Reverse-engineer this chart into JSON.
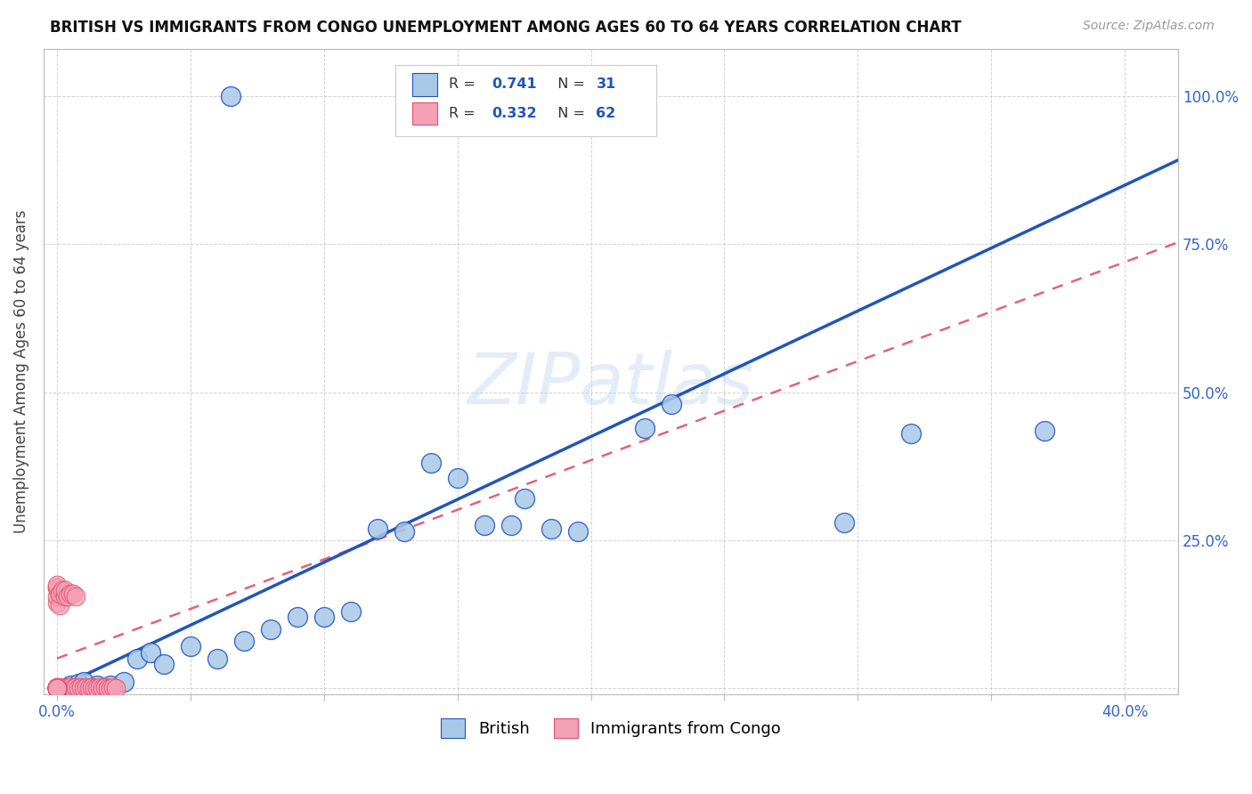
{
  "title": "BRITISH VS IMMIGRANTS FROM CONGO UNEMPLOYMENT AMONG AGES 60 TO 64 YEARS CORRELATION CHART",
  "source": "Source: ZipAtlas.com",
  "ylabel": "Unemployment Among Ages 60 to 64 years",
  "x_ticks": [
    0.0,
    0.05,
    0.1,
    0.15,
    0.2,
    0.25,
    0.3,
    0.35,
    0.4
  ],
  "x_tick_labels": [
    "0.0%",
    "",
    "",
    "",
    "",
    "",
    "",
    "",
    "40.0%"
  ],
  "y_ticks": [
    0.0,
    0.25,
    0.5,
    0.75,
    1.0
  ],
  "y_tick_labels": [
    "",
    "25.0%",
    "50.0%",
    "75.0%",
    "100.0%"
  ],
  "xlim": [
    -0.005,
    0.42
  ],
  "ylim": [
    -0.01,
    1.08
  ],
  "legend_R_british": "0.741",
  "legend_N_british": "31",
  "legend_R_congo": "0.332",
  "legend_N_congo": "62",
  "watermark": "ZIPatlas",
  "british_color": "#a8c8e8",
  "congo_color": "#f4a0b5",
  "british_line_color": "#2255bb",
  "congo_line_color": "#e05070",
  "british_scatter_x": [
    0.005,
    0.008,
    0.01,
    0.015,
    0.02,
    0.025,
    0.03,
    0.035,
    0.04,
    0.05,
    0.06,
    0.07,
    0.08,
    0.09,
    0.1,
    0.11,
    0.12,
    0.13,
    0.14,
    0.15,
    0.16,
    0.17,
    0.175,
    0.185,
    0.195,
    0.22,
    0.23,
    0.295,
    0.32,
    0.37,
    0.065
  ],
  "british_scatter_y": [
    0.005,
    0.008,
    0.01,
    0.005,
    0.005,
    0.01,
    0.05,
    0.06,
    0.04,
    0.07,
    0.05,
    0.08,
    0.1,
    0.12,
    0.12,
    0.13,
    0.27,
    0.265,
    0.38,
    0.355,
    0.275,
    0.275,
    0.32,
    0.27,
    0.265,
    0.44,
    0.48,
    0.28,
    0.43,
    0.435,
    1.0
  ],
  "congo_scatter_x": [
    0.0,
    0.0,
    0.0,
    0.001,
    0.002,
    0.003,
    0.004,
    0.005,
    0.006,
    0.007,
    0.008,
    0.009,
    0.01,
    0.011,
    0.012,
    0.013,
    0.014,
    0.015,
    0.016,
    0.017,
    0.018,
    0.019,
    0.02,
    0.021,
    0.022,
    0.0,
    0.0,
    0.0,
    0.001,
    0.001,
    0.0,
    0.0,
    0.001,
    0.002,
    0.003,
    0.003,
    0.004,
    0.005,
    0.006,
    0.007,
    0.0,
    0.0,
    0.0,
    0.0,
    0.0,
    0.0,
    0.0,
    0.0,
    0.0,
    0.0,
    0.0,
    0.0,
    0.0,
    0.0,
    0.0,
    0.0,
    0.0,
    0.0,
    0.0,
    0.0,
    0.0,
    0.0
  ],
  "congo_scatter_y": [
    0.0,
    0.001,
    0.002,
    0.0,
    0.001,
    0.0,
    0.001,
    0.002,
    0.0,
    0.001,
    0.0,
    0.001,
    0.0,
    0.001,
    0.0,
    0.001,
    0.0,
    0.0,
    0.001,
    0.0,
    0.001,
    0.0,
    0.0,
    0.001,
    0.0,
    0.145,
    0.155,
    0.17,
    0.14,
    0.16,
    0.17,
    0.175,
    0.16,
    0.165,
    0.155,
    0.165,
    0.155,
    0.16,
    0.16,
    0.155,
    0.0,
    0.0,
    0.0,
    0.0,
    0.0,
    0.0,
    0.0,
    0.0,
    0.0,
    0.0,
    0.0,
    0.0,
    0.0,
    0.0,
    0.0,
    0.0,
    0.0,
    0.0,
    0.0,
    0.0,
    0.0,
    0.0
  ],
  "british_line_x0": 0.0,
  "british_line_y0": 0.0,
  "british_line_x1": 0.4,
  "british_line_y1": 0.85,
  "congo_line_x0": 0.0,
  "congo_line_y0": 0.05,
  "congo_line_x1": 0.4,
  "congo_line_y1": 0.72
}
